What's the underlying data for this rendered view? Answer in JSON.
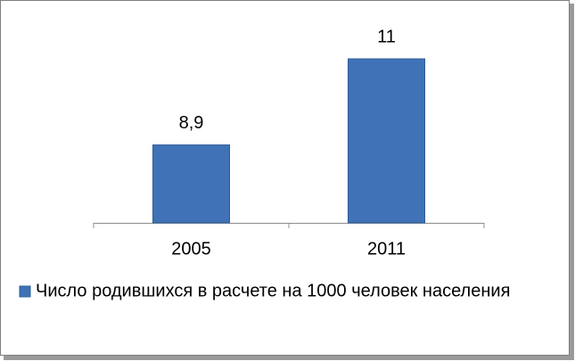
{
  "chart_data": {
    "type": "bar",
    "categories": [
      "2005",
      "2011"
    ],
    "series": [
      {
        "name": "Число родившихся в расчете на 1000 человек населения",
        "color": "#3f72b6",
        "values": [
          8.9,
          11
        ],
        "value_labels": [
          "8,9",
          "11"
        ]
      }
    ],
    "ylim": [
      7,
      12
    ],
    "legend": "bottom"
  }
}
